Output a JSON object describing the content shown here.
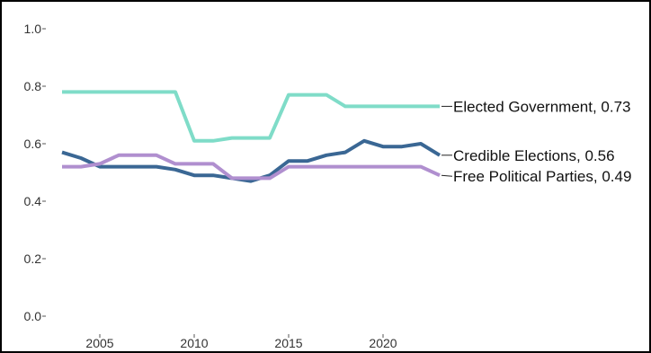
{
  "chart_data": {
    "type": "line",
    "title": "",
    "xlabel": "",
    "ylabel": "",
    "xlim": [
      2003,
      2023
    ],
    "ylim": [
      0,
      1
    ],
    "x_ticks": [
      2005,
      2010,
      2015,
      2020
    ],
    "y_ticks": [
      0.0,
      0.2,
      0.4,
      0.6,
      0.8,
      1.0
    ],
    "y_tick_labels": [
      "0.0",
      "0.2",
      "0.4",
      "0.6",
      "0.8",
      "1.0"
    ],
    "grid": false,
    "legend": "direct labels at line ends (right)",
    "x": [
      2003,
      2004,
      2005,
      2006,
      2007,
      2008,
      2009,
      2010,
      2011,
      2012,
      2013,
      2014,
      2015,
      2016,
      2017,
      2018,
      2019,
      2020,
      2021,
      2022,
      2023
    ],
    "series": [
      {
        "name": "Elected Government",
        "end_label": "Elected Government, 0.73",
        "color": "#7fdcc8",
        "values": [
          0.78,
          0.78,
          0.78,
          0.78,
          0.78,
          0.78,
          0.78,
          0.61,
          0.61,
          0.62,
          0.62,
          0.62,
          0.77,
          0.77,
          0.77,
          0.73,
          0.73,
          0.73,
          0.73,
          0.73,
          0.73
        ]
      },
      {
        "name": "Credible Elections",
        "end_label": "Credible Elections, 0.56",
        "color": "#3a6794",
        "values": [
          0.57,
          0.55,
          0.52,
          0.52,
          0.52,
          0.52,
          0.51,
          0.49,
          0.49,
          0.48,
          0.47,
          0.49,
          0.54,
          0.54,
          0.56,
          0.57,
          0.61,
          0.59,
          0.59,
          0.6,
          0.56
        ]
      },
      {
        "name": "Free Political Parties",
        "end_label": "Free Political Parties, 0.49",
        "color": "#b08fcf",
        "values": [
          0.52,
          0.52,
          0.53,
          0.56,
          0.56,
          0.56,
          0.53,
          0.53,
          0.53,
          0.48,
          0.48,
          0.48,
          0.52,
          0.52,
          0.52,
          0.52,
          0.52,
          0.52,
          0.52,
          0.52,
          0.49
        ]
      }
    ]
  }
}
